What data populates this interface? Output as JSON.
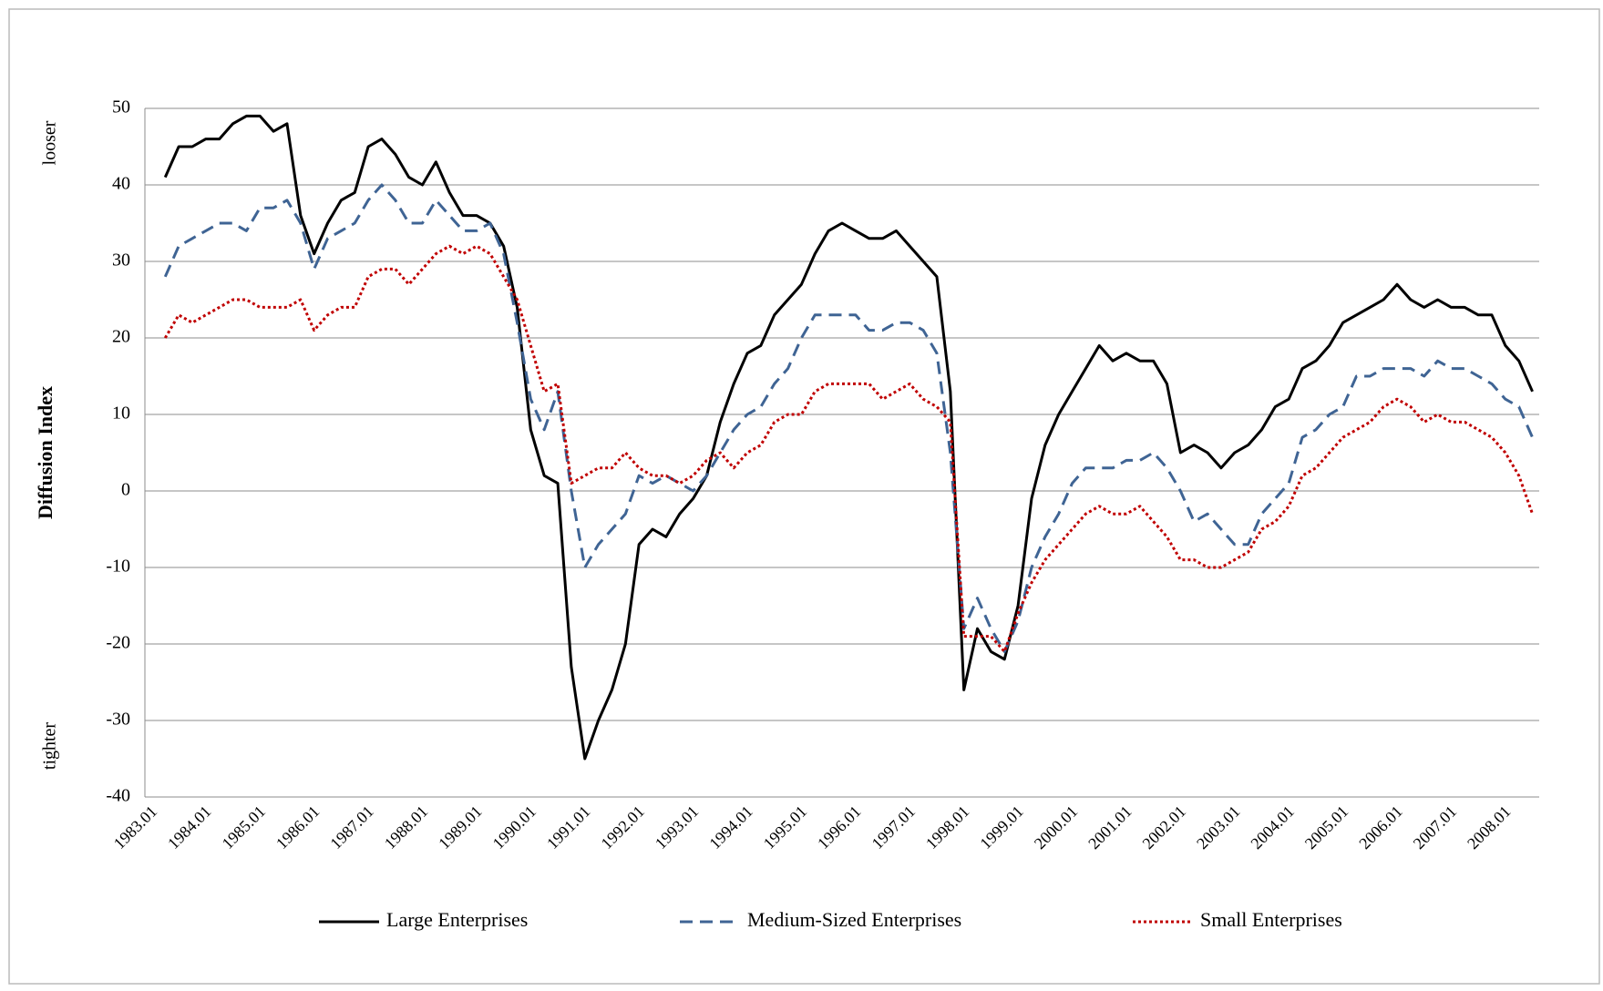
{
  "chart_data": {
    "type": "line",
    "y_label": "Diffusion Index",
    "annotations": [
      "looser",
      "tighter"
    ],
    "categories": [
      "1983.01",
      null,
      null,
      null,
      "1984.01",
      null,
      null,
      null,
      "1985.01",
      null,
      null,
      null,
      "1986.01",
      null,
      null,
      null,
      "1987.01",
      null,
      null,
      null,
      "1988.01",
      null,
      null,
      null,
      "1989.01",
      null,
      null,
      null,
      "1990.01",
      null,
      null,
      null,
      "1991.01",
      null,
      null,
      null,
      "1992.01",
      null,
      null,
      null,
      "1993.01",
      null,
      null,
      null,
      "1994.01",
      null,
      null,
      null,
      "1995.01",
      null,
      null,
      null,
      "1996.01",
      null,
      null,
      null,
      "1997.01",
      null,
      null,
      null,
      "1998.01",
      null,
      null,
      null,
      "1999.01",
      null,
      null,
      null,
      "2000.01",
      null,
      null,
      null,
      "2001.01",
      null,
      null,
      null,
      "2002.01",
      null,
      null,
      null,
      "2003.01",
      null,
      null,
      null,
      "2004.01",
      null,
      null,
      null,
      "2005.01",
      null,
      null,
      null,
      "2006.01",
      null,
      null,
      null,
      "2007.01",
      null,
      null,
      null,
      "2008.01",
      null,
      null
    ],
    "series": [
      {
        "name": "Large Enterprises",
        "color": "#000000",
        "style": "solid",
        "values": [
          null,
          41,
          45,
          45,
          46,
          46,
          48,
          49,
          49,
          47,
          48,
          36,
          31,
          35,
          38,
          39,
          45,
          46,
          44,
          41,
          40,
          43,
          39,
          36,
          36,
          35,
          32,
          24,
          8,
          2,
          1,
          -23,
          -35,
          -30,
          -26,
          -20,
          -7,
          -5,
          -6,
          -3,
          -1,
          2,
          9,
          14,
          18,
          19,
          23,
          25,
          27,
          31,
          34,
          35,
          34,
          33,
          33,
          34,
          32,
          30,
          28,
          13,
          -26,
          -18,
          -21,
          -22,
          -15,
          -1,
          6,
          10,
          13,
          16,
          19,
          17,
          18,
          17,
          17,
          14,
          5,
          6,
          5,
          3,
          5,
          6,
          8,
          11,
          12,
          16,
          17,
          19,
          22,
          23,
          24,
          25,
          27,
          25,
          24,
          25,
          24,
          24,
          23,
          23,
          19,
          17,
          13
        ]
      },
      {
        "name": "Medium-Sized Enterprises",
        "color": "#3f6494",
        "style": "dashed",
        "values": [
          null,
          28,
          32,
          33,
          34,
          35,
          35,
          34,
          37,
          37,
          38,
          35,
          29,
          33,
          34,
          35,
          38,
          40,
          38,
          35,
          35,
          38,
          36,
          34,
          34,
          35,
          31,
          22,
          12,
          8,
          13,
          0,
          -10,
          -7,
          -5,
          -3,
          2,
          1,
          2,
          1,
          0,
          2,
          5,
          8,
          10,
          11,
          14,
          16,
          20,
          23,
          23,
          23,
          23,
          21,
          21,
          22,
          22,
          21,
          18,
          5,
          -18,
          -14,
          -18,
          -21,
          -17,
          -10,
          -6,
          -3,
          1,
          3,
          3,
          3,
          4,
          4,
          5,
          3,
          0,
          -4,
          -3,
          -5,
          -7,
          -7,
          -3,
          -1,
          1,
          7,
          8,
          10,
          11,
          15,
          15,
          16,
          16,
          16,
          15,
          17,
          16,
          16,
          15,
          14,
          12,
          11,
          7
        ]
      },
      {
        "name": "Small Enterprises",
        "color": "#c00000",
        "style": "dotted",
        "values": [
          null,
          20,
          23,
          22,
          23,
          24,
          25,
          25,
          24,
          24,
          24,
          25,
          21,
          23,
          24,
          24,
          28,
          29,
          29,
          27,
          29,
          31,
          32,
          31,
          32,
          31,
          28,
          25,
          19,
          13,
          14,
          1,
          2,
          3,
          3,
          5,
          3,
          2,
          2,
          1,
          2,
          4,
          5,
          3,
          5,
          6,
          9,
          10,
          10,
          13,
          14,
          14,
          14,
          14,
          12,
          13,
          14,
          12,
          11,
          9,
          -19,
          -19,
          -19,
          -21,
          -16,
          -12,
          -9,
          -7,
          -5,
          -3,
          -2,
          -3,
          -3,
          -2,
          -4,
          -6,
          -9,
          -9,
          -10,
          -10,
          -9,
          -8,
          -5,
          -4,
          -2,
          2,
          3,
          5,
          7,
          8,
          9,
          11,
          12,
          11,
          9,
          10,
          9,
          9,
          8,
          7,
          5,
          2,
          -3
        ]
      }
    ],
    "ylim": [
      -40,
      50
    ],
    "yticks": [
      -40,
      -30,
      -20,
      -10,
      0,
      10,
      20,
      30,
      40,
      50
    ],
    "grid": true,
    "legend": "bottom"
  }
}
